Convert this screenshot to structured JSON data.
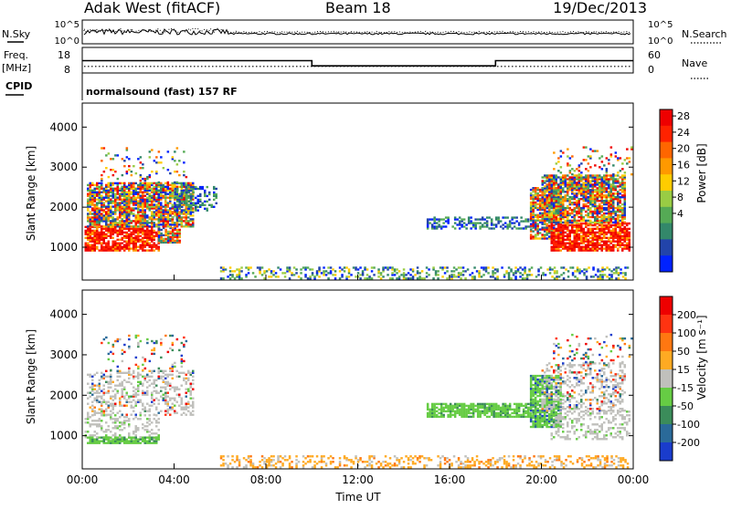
{
  "header": {
    "station": "Adak West (fitACF)",
    "beam": "Beam 18",
    "date": "19/Dec/2013"
  },
  "top_panels": {
    "nsky": {
      "label": "N.Sky",
      "left_ticks": [
        "10^5",
        "10^0"
      ],
      "right_label": "N.Search",
      "right_ticks": [
        "10^5",
        "10^0"
      ]
    },
    "freq": {
      "label_line1": "Freq.",
      "label_line2": "[MHz]",
      "left_ticks": [
        "18",
        "8"
      ],
      "right_label": "Nave",
      "right_ticks": [
        "60",
        "0"
      ],
      "freq_steps": [
        {
          "from_hour": 0,
          "to_hour": 10,
          "mhz": 13
        },
        {
          "from_hour": 10,
          "to_hour": 18,
          "mhz": 10
        },
        {
          "from_hour": 18,
          "to_hour": 24,
          "mhz": 13
        }
      ],
      "nave_level": 10
    },
    "cpid": {
      "label": "CPID",
      "text": "normalsound (fast) 157 RF"
    }
  },
  "chart_data": [
    {
      "type": "heatmap",
      "name": "power",
      "ylabel": "Slant Range [km]",
      "xlabel": "Time UT",
      "x_range_hours": [
        0,
        24
      ],
      "y_range_km": [
        180,
        4600
      ],
      "y_ticks": [
        "1000",
        "2000",
        "3000",
        "4000"
      ],
      "x_ticks": [
        "00:00",
        "04:00",
        "08:00",
        "12:00",
        "16:00",
        "20:00",
        "00:00"
      ],
      "colorbar": {
        "label": "Power [dB]",
        "ticks": [
          "4",
          "8",
          "12",
          "16",
          "20",
          "24",
          "28"
        ],
        "colors": [
          "#0022ff",
          "#2244aa",
          "#33886a",
          "#55aa55",
          "#99cc44",
          "#ffcc00",
          "#ff9900",
          "#ff6600",
          "#ff2200",
          "#ee0000"
        ]
      },
      "regions": [
        {
          "t0": 0.1,
          "t1": 3.3,
          "r0": 900,
          "r1": 1500,
          "level": "high"
        },
        {
          "t0": 3.3,
          "t1": 4.2,
          "r0": 1100,
          "r1": 1900,
          "level": "mixed"
        },
        {
          "t0": 0.2,
          "t1": 4.8,
          "r0": 1500,
          "r1": 2600,
          "level": "mixed"
        },
        {
          "t0": 4.0,
          "t1": 5.8,
          "r0": 1900,
          "r1": 2500,
          "level": "low"
        },
        {
          "t0": 0.8,
          "t1": 4.5,
          "r0": 2600,
          "r1": 3500,
          "level": "sparse"
        },
        {
          "t0": 6.0,
          "t1": 23.8,
          "r0": 200,
          "r1": 500,
          "level": "ground"
        },
        {
          "t0": 15.0,
          "t1": 19.5,
          "r0": 1450,
          "r1": 1750,
          "level": "low"
        },
        {
          "t0": 19.5,
          "t1": 20.8,
          "r0": 1200,
          "r1": 2500,
          "level": "mixed"
        },
        {
          "t0": 20.4,
          "t1": 23.8,
          "r0": 900,
          "r1": 1600,
          "level": "high"
        },
        {
          "t0": 20.0,
          "t1": 23.6,
          "r0": 1600,
          "r1": 2800,
          "level": "mixed"
        },
        {
          "t0": 20.5,
          "t1": 23.9,
          "r0": 2800,
          "r1": 3500,
          "level": "sparse"
        }
      ]
    },
    {
      "type": "heatmap",
      "name": "velocity",
      "ylabel": "Slant Range [km]",
      "xlabel": "Time UT",
      "x_range_hours": [
        0,
        24
      ],
      "y_range_km": [
        180,
        4600
      ],
      "y_ticks": [
        "1000",
        "2000",
        "3000",
        "4000"
      ],
      "x_ticks": [
        "00:00",
        "04:00",
        "08:00",
        "12:00",
        "16:00",
        "20:00",
        "00:00"
      ],
      "colorbar": {
        "label": "Velocity [m s⁻¹]",
        "ticks": [
          "200",
          "100",
          "50",
          "15",
          "-15",
          "-50",
          "-100",
          "-200"
        ],
        "colors": [
          "#1a3ccc",
          "#2a6a99",
          "#3b8c5a",
          "#66cc44",
          "#c0c0bc",
          "#ffaa22",
          "#ff7711",
          "#ff3311",
          "#ee0000"
        ]
      },
      "regions": [
        {
          "t0": 0.1,
          "t1": 3.3,
          "r0": 900,
          "r1": 1500,
          "level": "ground_scatter"
        },
        {
          "t0": 0.2,
          "t1": 4.8,
          "r0": 1500,
          "r1": 2600,
          "level": "ground_mixed"
        },
        {
          "t0": 0.2,
          "t1": 3.3,
          "r0": 800,
          "r1": 950,
          "level": "green"
        },
        {
          "t0": 0.8,
          "t1": 4.5,
          "r0": 2600,
          "r1": 3500,
          "level": "sparse"
        },
        {
          "t0": 6.0,
          "t1": 23.8,
          "r0": 200,
          "r1": 500,
          "level": "orange_ground"
        },
        {
          "t0": 15.0,
          "t1": 19.5,
          "r0": 1450,
          "r1": 1800,
          "level": "green"
        },
        {
          "t0": 19.5,
          "t1": 20.8,
          "r0": 1200,
          "r1": 2500,
          "level": "green_mixed"
        },
        {
          "t0": 20.4,
          "t1": 23.8,
          "r0": 900,
          "r1": 1600,
          "level": "ground_scatter"
        },
        {
          "t0": 20.0,
          "t1": 23.6,
          "r0": 1600,
          "r1": 2800,
          "level": "ground_mixed"
        },
        {
          "t0": 20.5,
          "t1": 23.9,
          "r0": 2800,
          "r1": 3500,
          "level": "sparse"
        }
      ]
    }
  ]
}
